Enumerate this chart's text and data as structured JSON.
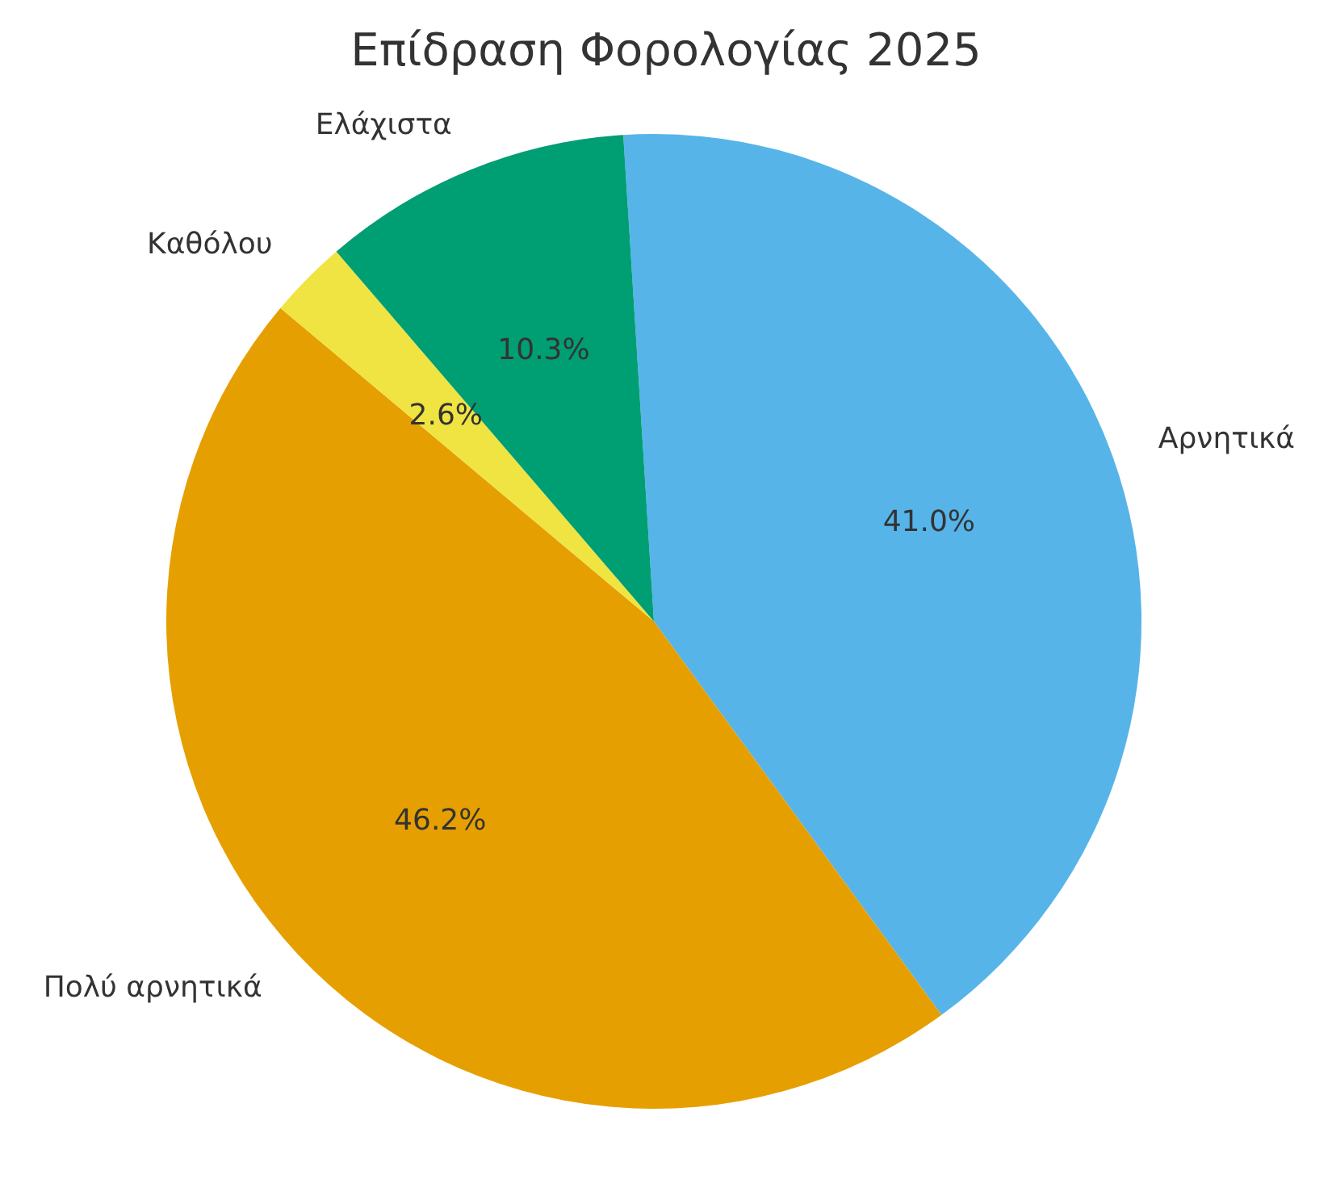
{
  "chart_data": {
    "type": "pie",
    "title": "Επίδραση Φορολογίας 2025",
    "categories": [
      "Αρνητικά",
      "Πολύ αρνητικά",
      "Καθόλου",
      "Ελάχιστα"
    ],
    "values": [
      41.0,
      46.2,
      2.6,
      10.3
    ],
    "colors": [
      "#56b4e9",
      "#e69f00",
      "#f0e442",
      "#009e73"
    ],
    "value_labels": [
      "41.0%",
      "46.2%",
      "2.6%",
      "10.3%"
    ]
  }
}
